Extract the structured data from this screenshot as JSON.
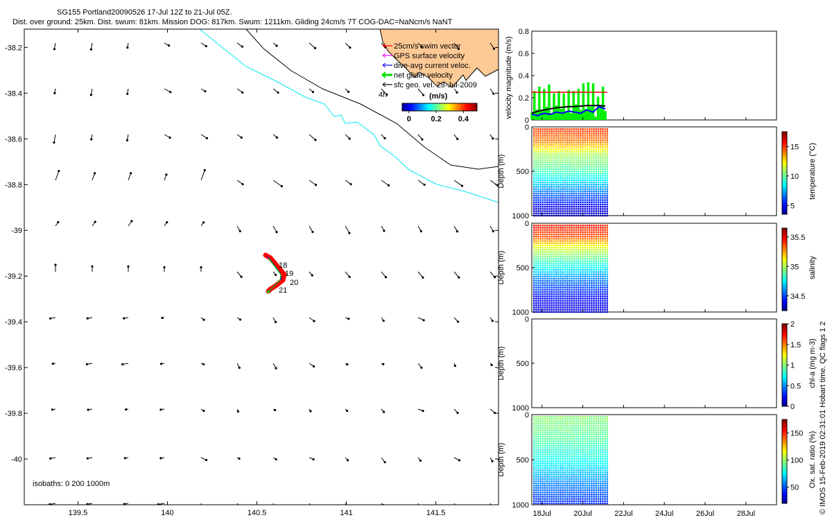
{
  "header": {
    "title_line1": "SG155 Portland20090526 17-Jul 12Z to 21-Jul 05Z.",
    "title_line2": "Dist. over ground: 25km. Dist. swum: 81km. Mission DOG: 817km. Swum: 1211km. Gliding 24cm/s 7T COG-DAC=NaNcm/s NaNT"
  },
  "map": {
    "xticks": [
      "139.5",
      "140",
      "140.5",
      "141",
      "141.5"
    ],
    "xtick_values": [
      139.5,
      140,
      140.5,
      141,
      141.5
    ],
    "yticks": [
      "-38.2",
      "-38.4",
      "-38.6",
      "-38.8",
      "-39",
      "-39.2",
      "-39.4",
      "-39.6",
      "-39.8",
      "-40"
    ],
    "ytick_values": [
      -38.2,
      -38.4,
      -38.6,
      -38.8,
      -39,
      -39.2,
      -39.4,
      -39.6,
      -39.8,
      -40
    ],
    "xlim": [
      139.2,
      141.85
    ],
    "ylim": [
      -40.2,
      -38.12
    ],
    "isobaths_label": "isobaths: 0   200   1000m",
    "day_labels": [
      "18",
      "19",
      "20",
      "21"
    ],
    "legend": {
      "items": [
        {
          "label": "25cm/s swim vector",
          "color": "#ff0000"
        },
        {
          "label": "GPS surface velocity",
          "color": "#ff00ff"
        },
        {
          "label": "dive-avg current veloc.",
          "color": "#0000ff"
        },
        {
          "label": "net glider velocity",
          "color": "#00dd00"
        },
        {
          "label": "sfc geo. vel. 28-Jul-2009",
          "color": "#000000"
        }
      ],
      "extra": "4h"
    },
    "colorbar": {
      "label": "(m/s)",
      "ticks": [
        "0",
        "0.2",
        "0.4"
      ],
      "tick_values": [
        0,
        0.2,
        0.4
      ],
      "range": [
        -0.05,
        0.5
      ]
    },
    "colors": {
      "land": "#fdc995",
      "isobath_0": "#000000",
      "isobath_200": "#000000",
      "isobath_1000": "#00e5ee",
      "track": "#ff0000"
    }
  },
  "chart_data": [
    {
      "type": "bar",
      "ylabel": "velocity magnitude (m/s)",
      "ylim": [
        0,
        0.8
      ],
      "yticks": [
        "0",
        "0.2",
        "0.4",
        "0.6",
        "0.8"
      ],
      "ytick_values": [
        0,
        0.2,
        0.4,
        0.6,
        0.8
      ],
      "x_range_days": [
        17.5,
        29.5
      ],
      "series": [
        {
          "name": "net glider velocity",
          "color": "#00ee00",
          "x": [
            17.5,
            17.62,
            17.74,
            17.86,
            17.98,
            18.1,
            18.22,
            18.34,
            18.46,
            18.58,
            18.7,
            18.82,
            18.94,
            19.06,
            19.18,
            19.3,
            19.42,
            19.54,
            19.66,
            19.78,
            19.9,
            20.02,
            20.14,
            20.26,
            20.38,
            20.5,
            20.62,
            20.74,
            20.86,
            20.98,
            21.1
          ],
          "values": [
            0.07,
            0.26,
            0.09,
            0.3,
            0.08,
            0.28,
            0.12,
            0.32,
            0.05,
            0.24,
            0.13,
            0.26,
            0.1,
            0.24,
            0.08,
            0.27,
            0.06,
            0.26,
            0.14,
            0.28,
            0.09,
            0.33,
            0.1,
            0.34,
            0.12,
            0.33,
            0.03,
            0.21,
            0.12,
            0.3,
            0.08
          ]
        },
        {
          "name": "25cm/s swim vector",
          "color": "#ff0000",
          "x": [
            17.5,
            21.2
          ],
          "values": [
            0.25,
            0.25
          ]
        },
        {
          "name": "dive-avg current veloc.",
          "color": "#0000ff",
          "x": [
            17.5,
            17.8,
            18.1,
            18.4,
            18.7,
            19.0,
            19.3,
            19.6,
            19.9,
            20.2,
            20.5,
            20.8,
            21.1
          ],
          "values": [
            0.05,
            0.04,
            0.06,
            0.05,
            0.07,
            0.06,
            0.08,
            0.07,
            0.06,
            0.09,
            0.07,
            0.12,
            0.1
          ]
        },
        {
          "name": "sfc geo. vel.",
          "color": "#000000",
          "x": [
            17.5,
            17.8,
            18.1,
            18.4,
            18.7,
            19.0,
            19.3,
            19.6,
            19.9,
            20.2,
            20.5,
            20.8,
            21.1
          ],
          "values": [
            0.06,
            0.08,
            0.09,
            0.1,
            0.11,
            0.115,
            0.12,
            0.12,
            0.125,
            0.13,
            0.13,
            0.13,
            0.125
          ]
        }
      ]
    },
    {
      "type": "heatmap",
      "ylabel": "Depth (m)",
      "clabel": "temperature (°C)",
      "ylim": [
        1000,
        0
      ],
      "yticks": [
        "0",
        "500",
        "1000"
      ],
      "ytick_values": [
        0,
        500,
        1000
      ],
      "ctick_labels": [
        "5",
        "10",
        "15"
      ],
      "ctick_values": [
        5,
        10,
        15
      ],
      "crange": [
        3.5,
        17.5
      ],
      "x_range_days": [
        17.5,
        21.3
      ],
      "profile": [
        {
          "depth": 0,
          "value": 15
        },
        {
          "depth": 150,
          "value": 14
        },
        {
          "depth": 300,
          "value": 11
        },
        {
          "depth": 500,
          "value": 9.5
        },
        {
          "depth": 700,
          "value": 7
        },
        {
          "depth": 900,
          "value": 4.8
        },
        {
          "depth": 1000,
          "value": 4
        }
      ]
    },
    {
      "type": "heatmap",
      "ylabel": "Depth (m)",
      "clabel": "salinity",
      "ylim": [
        1000,
        0
      ],
      "yticks": [
        "0",
        "500",
        "1000"
      ],
      "ytick_values": [
        0,
        500,
        1000
      ],
      "ctick_labels": [
        "34.5",
        "35",
        "35.5"
      ],
      "ctick_values": [
        34.5,
        35,
        35.5
      ],
      "crange": [
        34.25,
        35.65
      ],
      "x_range_days": [
        17.5,
        21.3
      ],
      "profile": [
        {
          "depth": 0,
          "value": 35.45
        },
        {
          "depth": 150,
          "value": 35.35
        },
        {
          "depth": 250,
          "value": 35.1
        },
        {
          "depth": 450,
          "value": 34.8
        },
        {
          "depth": 650,
          "value": 34.55
        },
        {
          "depth": 850,
          "value": 34.4
        },
        {
          "depth": 1000,
          "value": 34.35
        }
      ]
    },
    {
      "type": "heatmap",
      "ylabel": "Depth (m)",
      "clabel": "chl-a (mg m-3)",
      "ylim": [
        1000,
        0
      ],
      "yticks": [
        "0",
        "500",
        "1000"
      ],
      "ytick_values": [
        0,
        500,
        1000
      ],
      "ctick_labels": [
        "0",
        "0.5",
        "1",
        "1.5",
        "2"
      ],
      "ctick_values": [
        0,
        0.5,
        1,
        1.5,
        2
      ],
      "crange": [
        0,
        2
      ],
      "x_range_days": [
        17.5,
        21.3
      ],
      "profile": []
    },
    {
      "type": "heatmap",
      "ylabel": "Depth (m)",
      "clabel": "Ox. sat. ratio (%)",
      "ylim": [
        1000,
        0
      ],
      "yticks": [
        "0",
        "500",
        "1000"
      ],
      "ytick_values": [
        0,
        500,
        1000
      ],
      "ctick_labels": [
        "50",
        "100",
        "150"
      ],
      "ctick_values": [
        50,
        100,
        150
      ],
      "crange": [
        20,
        175
      ],
      "x_range_days": [
        17.5,
        21.3
      ],
      "profile": [
        {
          "depth": 0,
          "value": 98
        },
        {
          "depth": 100,
          "value": 95
        },
        {
          "depth": 300,
          "value": 88
        },
        {
          "depth": 500,
          "value": 78
        },
        {
          "depth": 700,
          "value": 62
        },
        {
          "depth": 900,
          "value": 48
        },
        {
          "depth": 1000,
          "value": 42
        }
      ]
    }
  ],
  "time_axis": {
    "ticks": [
      "18Jul",
      "20Jul",
      "22Jul",
      "24Jul",
      "26Jul",
      "28Jul"
    ],
    "tick_values": [
      18,
      20,
      22,
      24,
      26,
      28
    ],
    "xlim": [
      17.5,
      29.5
    ]
  },
  "footer": {
    "credit": "© IMOS 15-Feb-2019 02:31:01 Hobart time. QC flags 1  2"
  }
}
